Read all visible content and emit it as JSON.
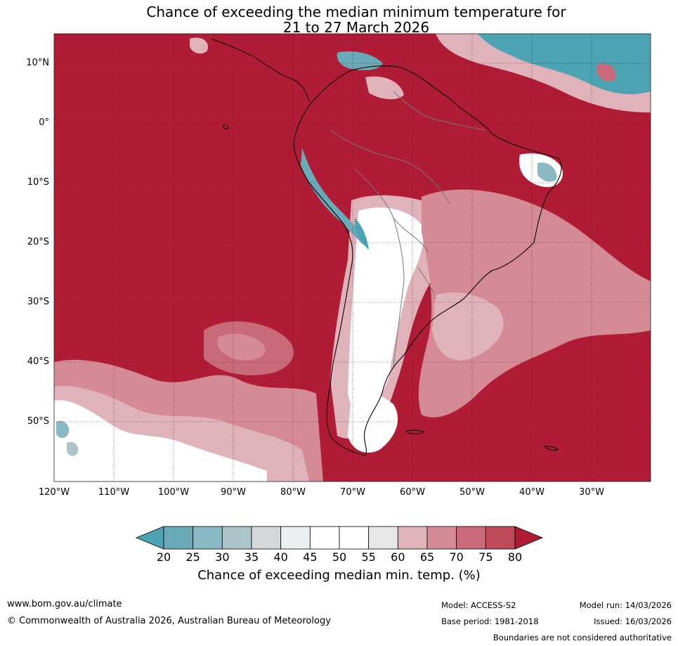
{
  "title_line1": "Chance of exceeding the median minimum temperature for",
  "title_line2": "21 to 27 March 2026",
  "lat_labels": [
    "10°N",
    "0°",
    "10°S",
    "20°S",
    "30°S",
    "40°S",
    "50°S"
  ],
  "lon_labels": [
    "120°W",
    "110°W",
    "100°W",
    "90°W",
    "80°W",
    "70°W",
    "60°W",
    "50°W",
    "40°W",
    "30°W"
  ],
  "legend": {
    "label": "Chance of exceeding median min. temp. (%)",
    "ticks": [
      "20",
      "25",
      "30",
      "35",
      "40",
      "45",
      "50",
      "55",
      "60",
      "65",
      "70",
      "75",
      "80"
    ],
    "colors": [
      "#4ba3b3",
      "#6aa9b7",
      "#8ab9c6",
      "#abc4ca",
      "#d3d8db",
      "#e9eff1",
      "#ffffff",
      "#ffffff",
      "#e8e8e8",
      "#e0b3bb",
      "#d58b95",
      "#c86a77",
      "#bf4a5a",
      "#b01c36"
    ]
  },
  "colors": {
    "ocean_high": "#b01c36",
    "cool": "#4ba3b3",
    "neutral": "#ffffff"
  },
  "footer": {
    "url": "www.bom.gov.au/climate",
    "copyright": "© Commonwealth of Australia 2026, Australian Bureau of Meteorology",
    "model": "Model: ACCESS-S2",
    "base_period": "Base period: 1981-2018",
    "model_run": "Model run: 14/03/2026",
    "issued": "Issued: 16/03/2026",
    "boundaries": "Boundaries are not considered authoritative"
  }
}
